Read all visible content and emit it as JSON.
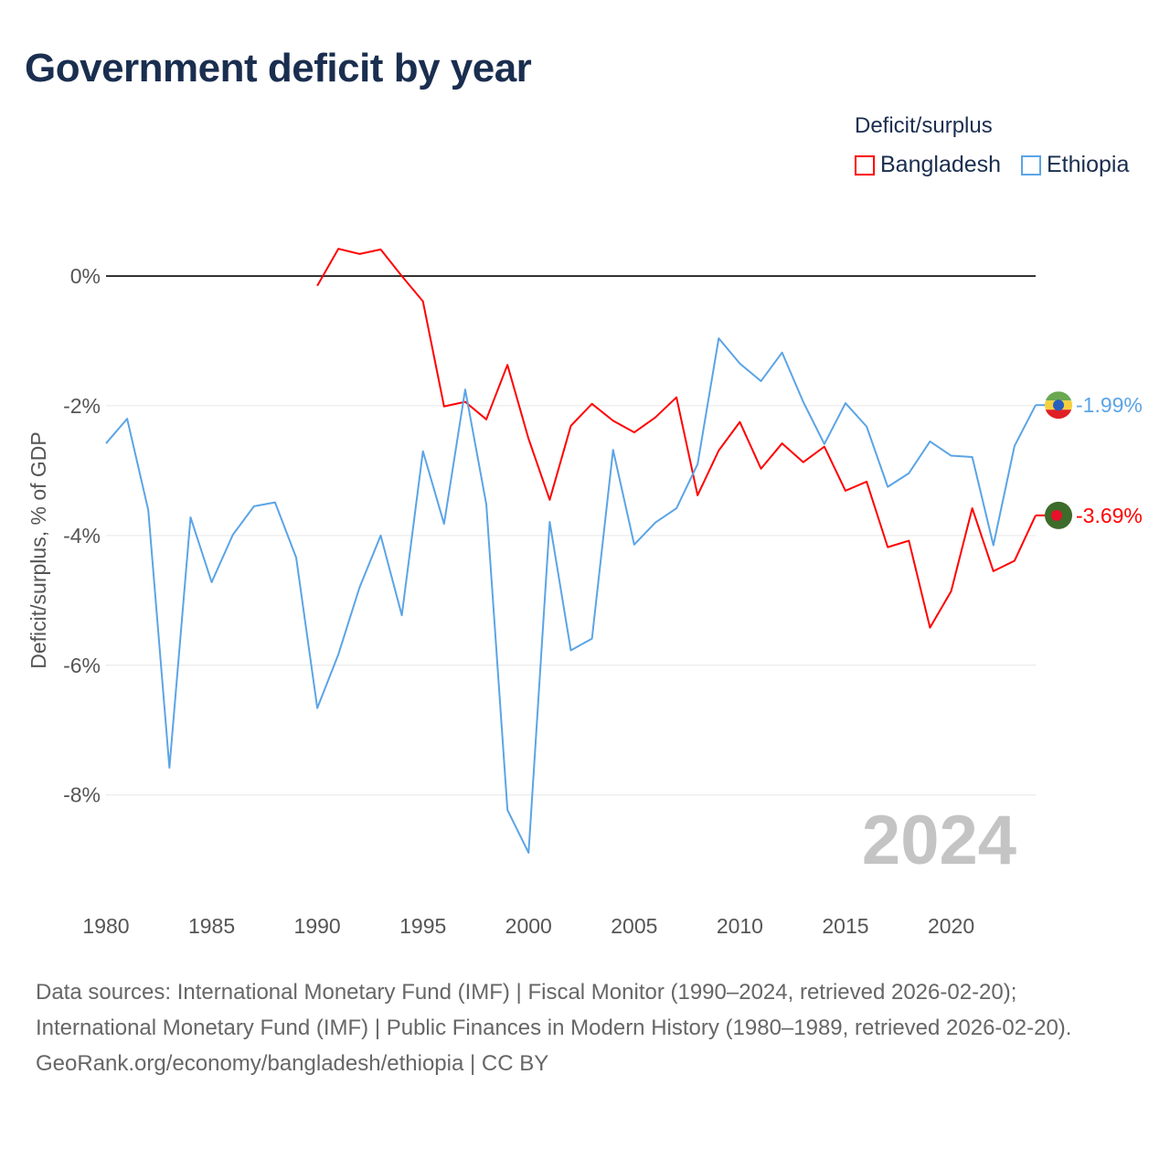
{
  "chart_data": {
    "type": "line",
    "title": "Government deficit by year",
    "xlabel": "",
    "ylabel": "Deficit/surplus, % of GDP",
    "xlim": [
      1980,
      2024
    ],
    "ylim": [
      -9.3,
      1.0
    ],
    "x_ticks": [
      1980,
      1985,
      1990,
      1995,
      2000,
      2005,
      2010,
      2015,
      2020
    ],
    "x_tick_labels": [
      "1980",
      "1985",
      "1990",
      "1995",
      "2000",
      "2005",
      "2010",
      "2015",
      "2020"
    ],
    "y_ticks": [
      0,
      -2,
      -4,
      -6,
      -8
    ],
    "y_tick_labels": [
      "0%",
      "-2%",
      "-4%",
      "-6%",
      "-8%"
    ],
    "grid": true,
    "legend_title": "Deficit/surplus",
    "legend_position": "top-right",
    "year_watermark": "2024",
    "series": [
      {
        "name": "Bangladesh",
        "color": "#ff0000",
        "end_label": "-3.69%",
        "x": [
          1990,
          1991,
          1992,
          1993,
          1994,
          1995,
          1996,
          1997,
          1998,
          1999,
          2000,
          2001,
          2002,
          2003,
          2004,
          2005,
          2006,
          2007,
          2008,
          2009,
          2010,
          2011,
          2012,
          2013,
          2014,
          2015,
          2016,
          2017,
          2018,
          2019,
          2020,
          2021,
          2022,
          2023,
          2024
        ],
        "values": [
          -0.15,
          0.42,
          0.34,
          0.41,
          0.0,
          -0.39,
          -2.01,
          -1.94,
          -2.21,
          -1.37,
          -2.51,
          -3.45,
          -2.31,
          -1.97,
          -2.23,
          -2.41,
          -2.18,
          -1.87,
          -3.38,
          -2.69,
          -2.25,
          -2.97,
          -2.58,
          -2.87,
          -2.63,
          -3.31,
          -3.17,
          -4.18,
          -4.08,
          -5.42,
          -4.86,
          -3.58,
          -4.55,
          -4.39,
          -3.69
        ]
      },
      {
        "name": "Ethiopia",
        "color": "#5ba4e6",
        "end_label": "-1.99%",
        "x": [
          1980,
          1981,
          1982,
          1983,
          1984,
          1985,
          1986,
          1987,
          1988,
          1989,
          1990,
          1991,
          1992,
          1993,
          1994,
          1995,
          1996,
          1997,
          1998,
          1999,
          2000,
          2001,
          2002,
          2003,
          2004,
          2005,
          2006,
          2007,
          2008,
          2009,
          2010,
          2011,
          2012,
          2013,
          2014,
          2015,
          2016,
          2017,
          2018,
          2019,
          2020,
          2021,
          2022,
          2023,
          2024
        ],
        "values": [
          -2.58,
          -2.2,
          -3.61,
          -7.58,
          -3.72,
          -4.72,
          -3.99,
          -3.55,
          -3.49,
          -4.34,
          -6.66,
          -5.83,
          -4.8,
          -4.0,
          -5.23,
          -2.7,
          -3.82,
          -1.75,
          -3.52,
          -8.23,
          -8.89,
          -3.79,
          -5.77,
          -5.59,
          -2.68,
          -4.14,
          -3.8,
          -3.58,
          -2.9,
          -0.96,
          -1.35,
          -1.62,
          -1.18,
          -1.94,
          -2.59,
          -1.96,
          -2.32,
          -3.25,
          -3.04,
          -2.55,
          -2.77,
          -2.79,
          -4.15,
          -2.62,
          -1.99
        ]
      }
    ]
  },
  "footer": {
    "sources": "Data sources: International Monetary Fund (IMF) | Fiscal Monitor (1990–2024, retrieved 2026-02-20); International Monetary Fund (IMF) | Public Finances in Modern History (1980–1989, retrieved 2026-02-20).",
    "credit": "GeoRank.org/economy/bangladesh/ethiopia | CC BY"
  }
}
